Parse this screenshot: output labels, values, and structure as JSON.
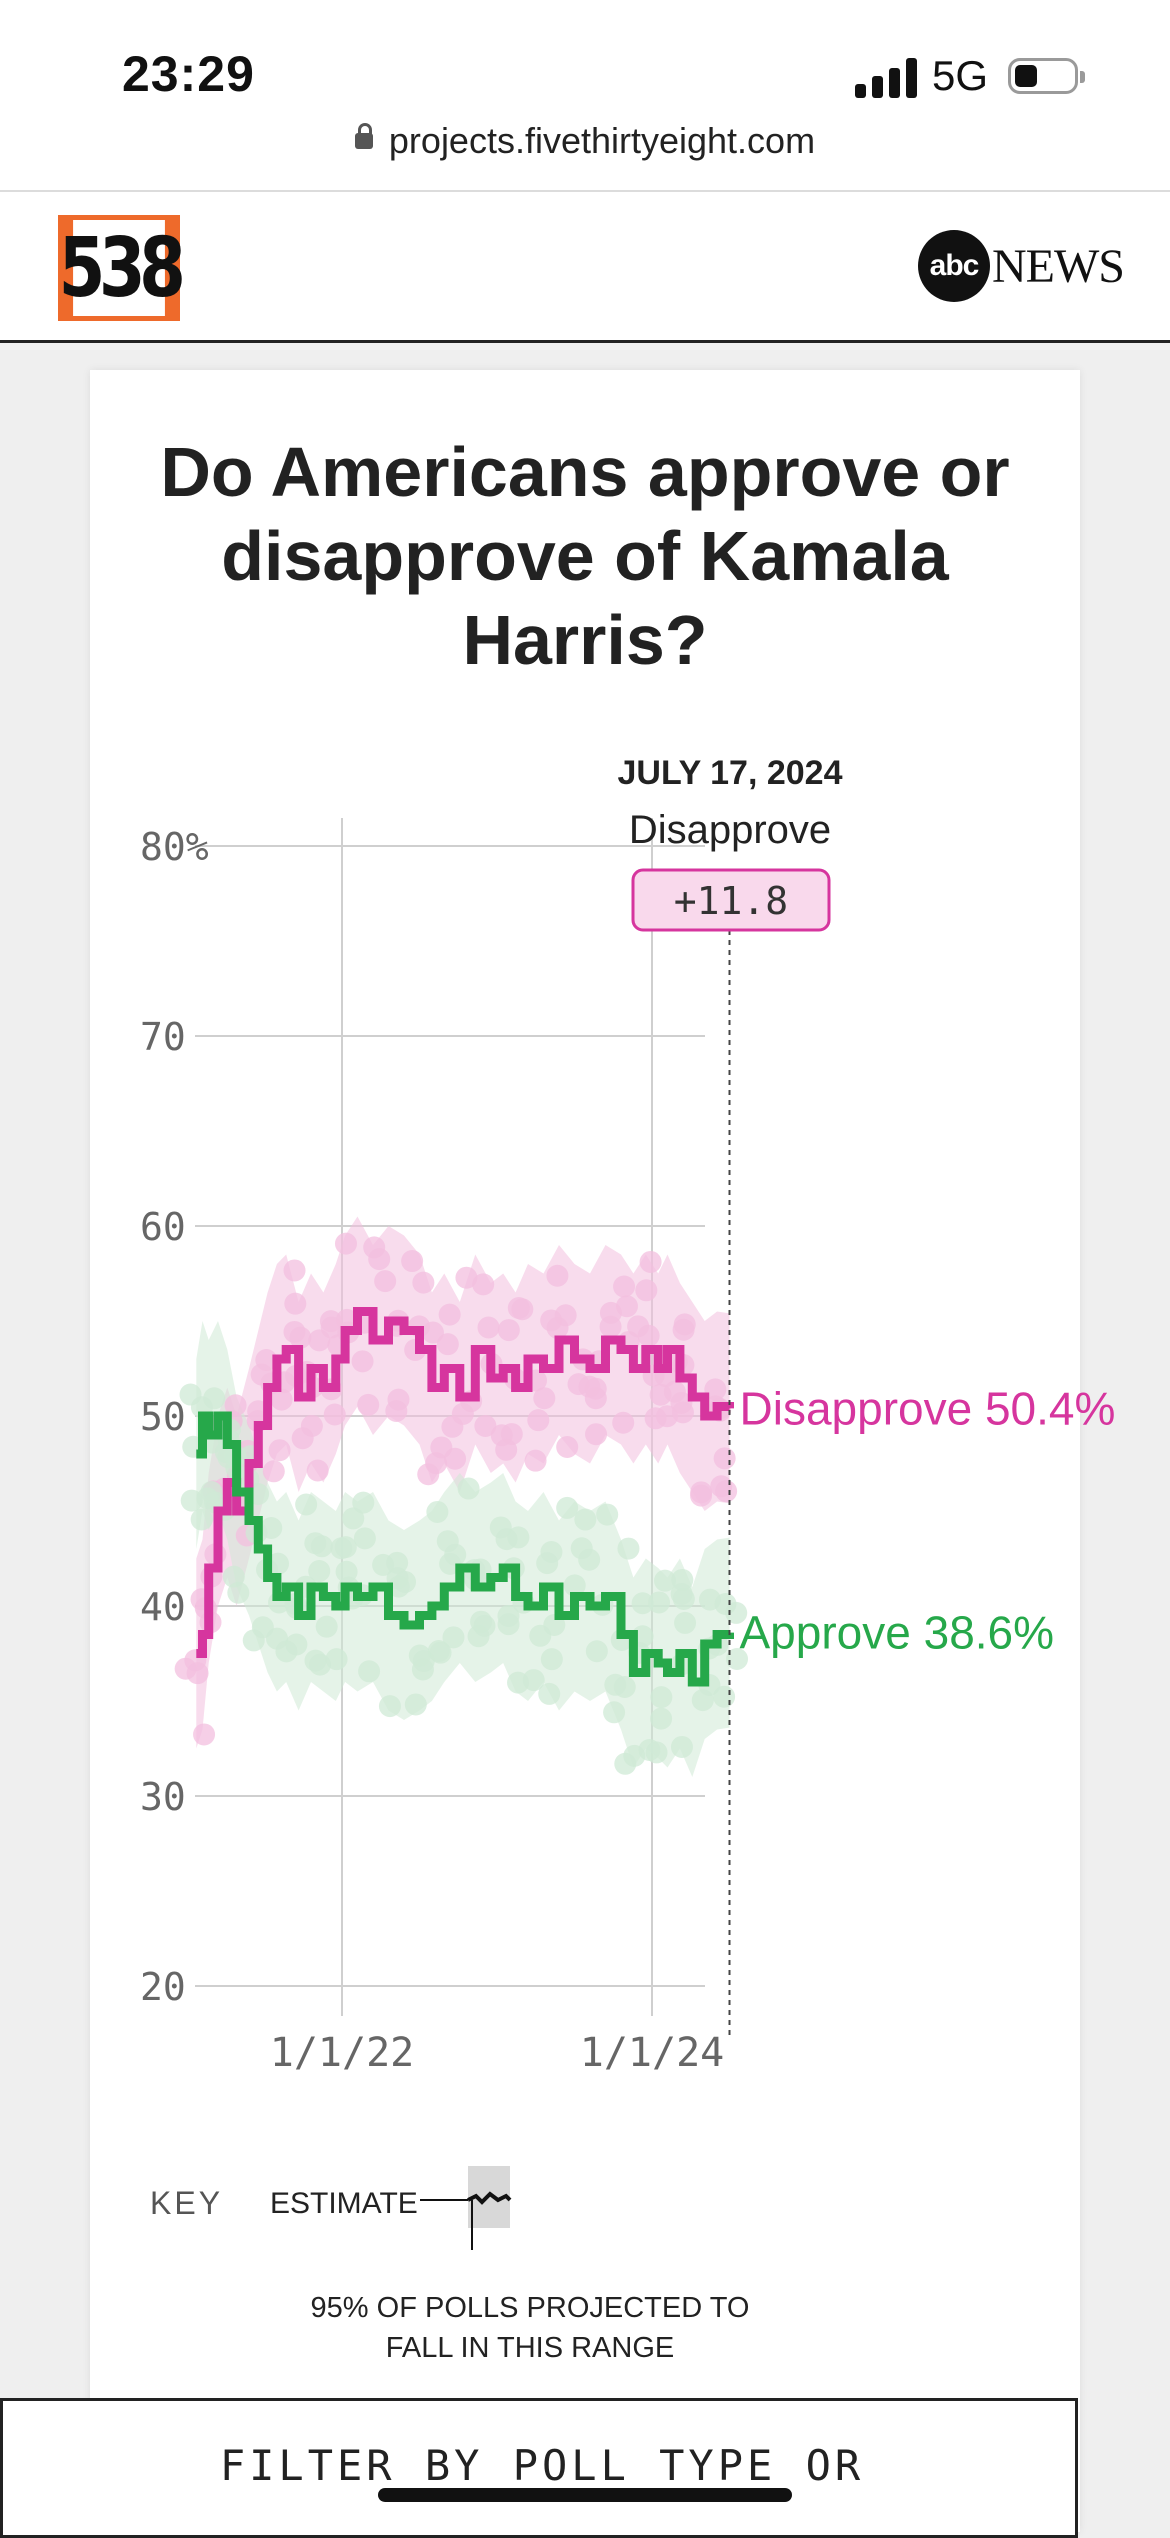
{
  "status": {
    "time": "23:29",
    "network": "5G",
    "url": "projects.fivethirtyeight.com"
  },
  "header": {
    "logo_text": "538",
    "partner_abc": "abc",
    "partner_news": "NEWS"
  },
  "chart_data": {
    "type": "line",
    "title": "Do Americans approve or disapprove of Kamala Harris?",
    "date_label": "JULY 17, 2024",
    "callout_label": "Disapprove",
    "callout_value": "+11.8",
    "y_ticks": [
      "80%",
      "70",
      "60",
      "50",
      "40",
      "30",
      "20"
    ],
    "y_tick_values": [
      80,
      70,
      60,
      50,
      40,
      30,
      20
    ],
    "ylim": [
      20,
      80
    ],
    "x_ticks": [
      "1/1/22",
      "1/1/24"
    ],
    "x_tick_values": [
      2022.0,
      2024.0
    ],
    "xlim": [
      2020.8,
      2024.55
    ],
    "series": [
      {
        "name": "Disapprove",
        "end_label": "Disapprove 50.4%",
        "color": "#d6359e",
        "band_color": "#f3bfdf",
        "x": [
          2021.06,
          2021.1,
          2021.14,
          2021.2,
          2021.26,
          2021.32,
          2021.4,
          2021.46,
          2021.52,
          2021.58,
          2021.64,
          2021.72,
          2021.8,
          2021.88,
          2021.96,
          2022.02,
          2022.1,
          2022.2,
          2022.3,
          2022.4,
          2022.5,
          2022.58,
          2022.66,
          2022.76,
          2022.86,
          2022.96,
          2023.04,
          2023.12,
          2023.2,
          2023.3,
          2023.4,
          2023.5,
          2023.6,
          2023.7,
          2023.8,
          2023.88,
          2023.96,
          2024.04,
          2024.1,
          2024.18,
          2024.26,
          2024.34,
          2024.42,
          2024.5
        ],
        "y": [
          37.5,
          38.5,
          42,
          45,
          46.5,
          45,
          47.5,
          49.5,
          51.5,
          53,
          53.5,
          51,
          52.5,
          51.5,
          53,
          54.5,
          55.5,
          54,
          55,
          54.5,
          53.5,
          51.5,
          52.5,
          51,
          53.5,
          52,
          52.5,
          51.5,
          53,
          52.5,
          54,
          53,
          52.5,
          54,
          53.5,
          52.5,
          53.5,
          52.5,
          53.5,
          52,
          51,
          50,
          50.5,
          50.4
        ]
      },
      {
        "name": "Approve",
        "end_label": "Approve 38.6%",
        "color": "#26a84a",
        "band_color": "#cfead6",
        "x": [
          2021.06,
          2021.1,
          2021.14,
          2021.2,
          2021.26,
          2021.32,
          2021.4,
          2021.46,
          2021.52,
          2021.58,
          2021.64,
          2021.72,
          2021.8,
          2021.88,
          2021.96,
          2022.02,
          2022.1,
          2022.2,
          2022.3,
          2022.4,
          2022.5,
          2022.58,
          2022.66,
          2022.76,
          2022.86,
          2022.96,
          2023.04,
          2023.12,
          2023.2,
          2023.3,
          2023.4,
          2023.5,
          2023.6,
          2023.7,
          2023.8,
          2023.88,
          2023.96,
          2024.04,
          2024.1,
          2024.18,
          2024.26,
          2024.34,
          2024.42,
          2024.5
        ],
        "y": [
          48,
          50,
          49,
          50,
          48.5,
          46,
          44.5,
          43,
          41.5,
          40.5,
          41,
          39.5,
          41,
          40.5,
          40,
          41,
          40.5,
          41,
          39.5,
          39,
          39.5,
          40,
          41,
          42,
          41,
          41.5,
          42,
          40.5,
          40,
          41,
          39.5,
          40.5,
          40,
          40.5,
          38.5,
          36.5,
          37.5,
          37,
          36.5,
          37.5,
          36,
          38,
          38.5,
          38.6
        ]
      }
    ],
    "key_label": "KEY",
    "key_estimate": "ESTIMATE",
    "key_range_note": "95% OF POLLS PROJECTED TO FALL IN THIS RANGE"
  },
  "filter": {
    "label": "FILTER BY POLL TYPE OR"
  }
}
